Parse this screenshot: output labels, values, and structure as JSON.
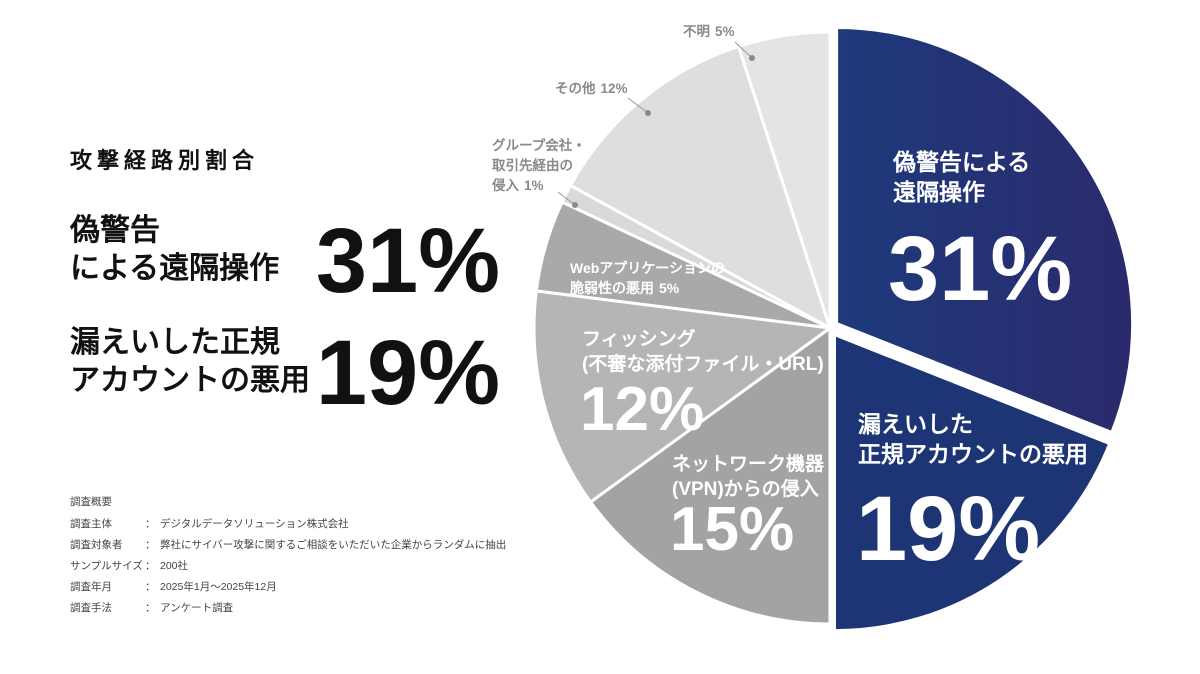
{
  "summary": {
    "title": "攻撃経路別割合",
    "highlights": [
      {
        "label": [
          "偽警告",
          "による遠隔操作"
        ],
        "value": "31%"
      },
      {
        "label": [
          "漏えいした正規",
          "アカウントの悪用"
        ],
        "value": "19%"
      }
    ],
    "survey": {
      "heading": "調査概要",
      "rows": [
        [
          "調査主体",
          "：",
          "デジタルデータソリューション株式会社"
        ],
        [
          "調査対象者",
          "：",
          "弊社にサイバー攻撃に関するご相談をいただいた企業からランダムに抽出"
        ],
        [
          "サンプルサイズ",
          "：",
          "200社"
        ],
        [
          "調査年月",
          "：",
          "2025年1月～2025年12月"
        ],
        [
          "調査手法",
          "：",
          "アンケート調査"
        ]
      ]
    }
  },
  "chart_data": {
    "type": "pie",
    "categories": [
      [
        "偽警告による",
        "遠隔操作"
      ],
      [
        "漏えいした",
        "正規アカウントの悪用"
      ],
      [
        "ネットワーク機器",
        "(VPN)からの侵入"
      ],
      [
        "フィッシング",
        "(不審な添付ファイル・URL)"
      ],
      [
        "Webアプリケーションの",
        "脆弱性の悪用"
      ],
      [
        "グループ会社・",
        "取引先経由の",
        "侵入"
      ],
      [
        "その他"
      ],
      [
        "不明"
      ]
    ],
    "values": [
      31,
      19,
      15,
      12,
      5,
      1,
      12,
      5
    ],
    "value_labels": [
      "31%",
      "19%",
      "15%",
      "12%",
      "5%",
      "1%",
      "12%",
      "5%"
    ],
    "colors": [
      "#1f2f72",
      "#1d3574",
      "#a3a3a3",
      "#b5b5b5",
      "#a9a9a9",
      "#d9d9d9",
      "#dedede",
      "#e4e4e4"
    ]
  }
}
